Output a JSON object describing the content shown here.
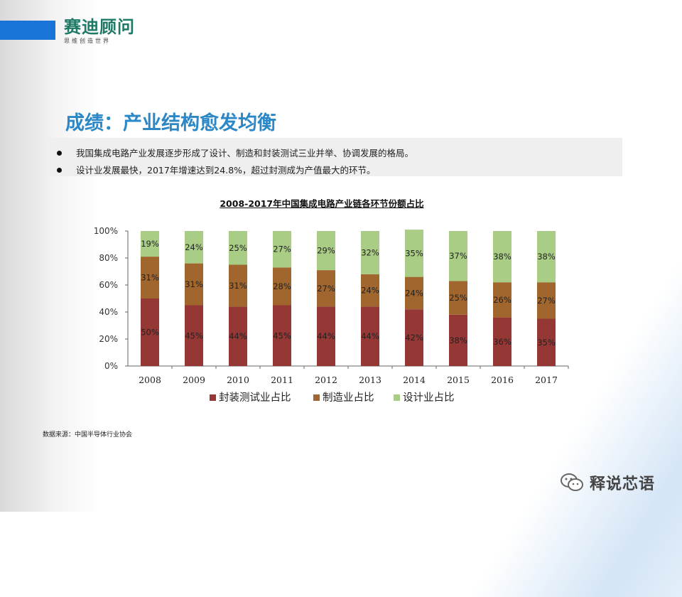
{
  "brand": {
    "logo_text": "赛迪顾问",
    "tagline": "思维创造世界",
    "accent": "#1a73d6"
  },
  "slide": {
    "title": "成绩：产业结构愈发均衡",
    "bullets": [
      "我国集成电路产业发展逐步形成了设计、制造和封装测试三业并举、协调发展的格局。",
      "设计业发展最快，2017年增速达到24.8%，超过封测成为产值最大的环节。"
    ],
    "source": "数据来源：中国半导体行业协会",
    "watermark": "释说芯语"
  },
  "chart_data": {
    "type": "bar",
    "stacked": true,
    "title": "2008-2017年中国集成电路产业链各环节份额占比",
    "categories": [
      "2008",
      "2009",
      "2010",
      "2011",
      "2012",
      "2013",
      "2014",
      "2015",
      "2016",
      "2017"
    ],
    "y_ticks": [
      "0%",
      "20%",
      "40%",
      "60%",
      "80%",
      "100%"
    ],
    "ylim": [
      0,
      100
    ],
    "series": [
      {
        "name": "封装测试业占比",
        "color": "#953735",
        "values": [
          50,
          45,
          44,
          45,
          44,
          44,
          42,
          38,
          36,
          35
        ]
      },
      {
        "name": "制造业占比",
        "color": "#a0662e",
        "values": [
          31,
          31,
          31,
          28,
          27,
          24,
          24,
          25,
          26,
          27
        ]
      },
      {
        "name": "设计业占比",
        "color": "#a9cd85",
        "values": [
          19,
          24,
          25,
          27,
          29,
          32,
          35,
          37,
          38,
          38
        ]
      }
    ],
    "legend": "bottom"
  }
}
